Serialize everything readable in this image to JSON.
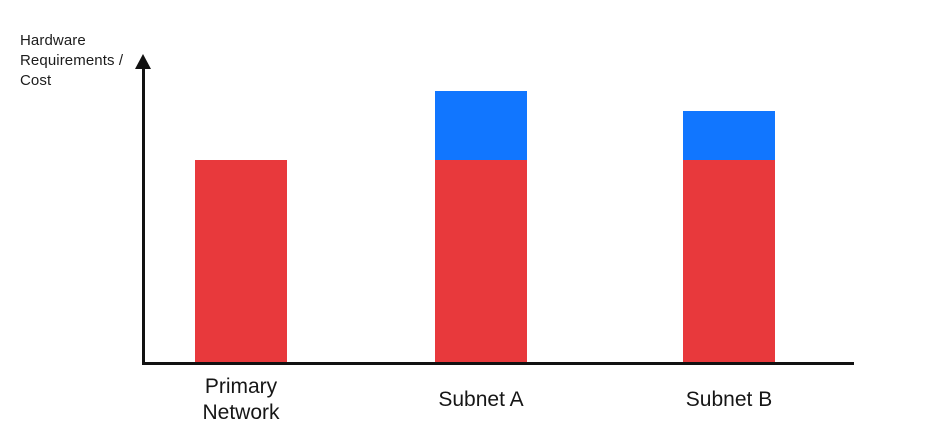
{
  "chart_data": {
    "type": "bar",
    "stacked": true,
    "title": "",
    "xlabel": "",
    "ylabel": "Hardware Requirements / Cost",
    "ylabel_lines": [
      "Hardware",
      "Requirements /",
      "Cost"
    ],
    "categories": [
      "Primary Network",
      "Subnet A",
      "Subnet B"
    ],
    "series": [
      {
        "name": "red",
        "color": "#E8393C",
        "values": [
          66,
          66,
          66
        ]
      },
      {
        "name": "blue",
        "color": "#1176FF",
        "values": [
          0,
          22.5,
          16
        ]
      }
    ],
    "ylim": [
      0,
      100
    ],
    "yticks": [],
    "xticks_visible": false,
    "grid": false,
    "legend": false,
    "axis_color": "#111111",
    "y_axis_arrow": true
  }
}
